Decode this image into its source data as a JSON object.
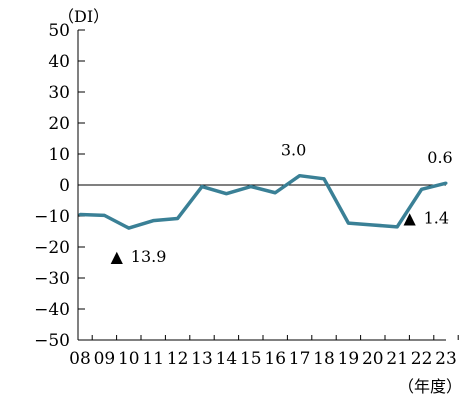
{
  "chart_data": {
    "type": "line",
    "y_unit_label": "（DI）",
    "x_unit_label": "（年度）",
    "categories": [
      "08",
      "09",
      "10",
      "11",
      "12",
      "13",
      "14",
      "15",
      "16",
      "17",
      "18",
      "19",
      "20",
      "21",
      "22",
      "23"
    ],
    "series": [
      {
        "values": [
          -9.5,
          -9.8,
          -13.9,
          -11.5,
          -10.8,
          -0.5,
          -2.8,
          -0.5,
          -2.5,
          3.0,
          2.0,
          -12.3,
          -12.9,
          -13.5,
          -1.4,
          0.6
        ],
        "color": "#3a8096"
      }
    ],
    "ylim": [
      -50,
      50
    ],
    "y_ticks": [
      50,
      40,
      30,
      20,
      10,
      0,
      -10,
      -20,
      -30,
      -40,
      -50
    ],
    "y_tick_labels": [
      "50",
      "40",
      "30",
      "20",
      "10",
      "0",
      "−10",
      "−20",
      "−30",
      "−40",
      "−50"
    ],
    "zero_line": true,
    "grid": false,
    "annotations": [
      {
        "category": "10",
        "marker": "▲",
        "text": "13.9",
        "position": "below"
      },
      {
        "category": "17",
        "marker": "",
        "text": "3.0",
        "position": "above"
      },
      {
        "category": "22",
        "marker": "▲",
        "text": "1.4",
        "position": "below"
      },
      {
        "category": "23",
        "marker": "",
        "text": "0.6",
        "position": "above"
      }
    ]
  }
}
